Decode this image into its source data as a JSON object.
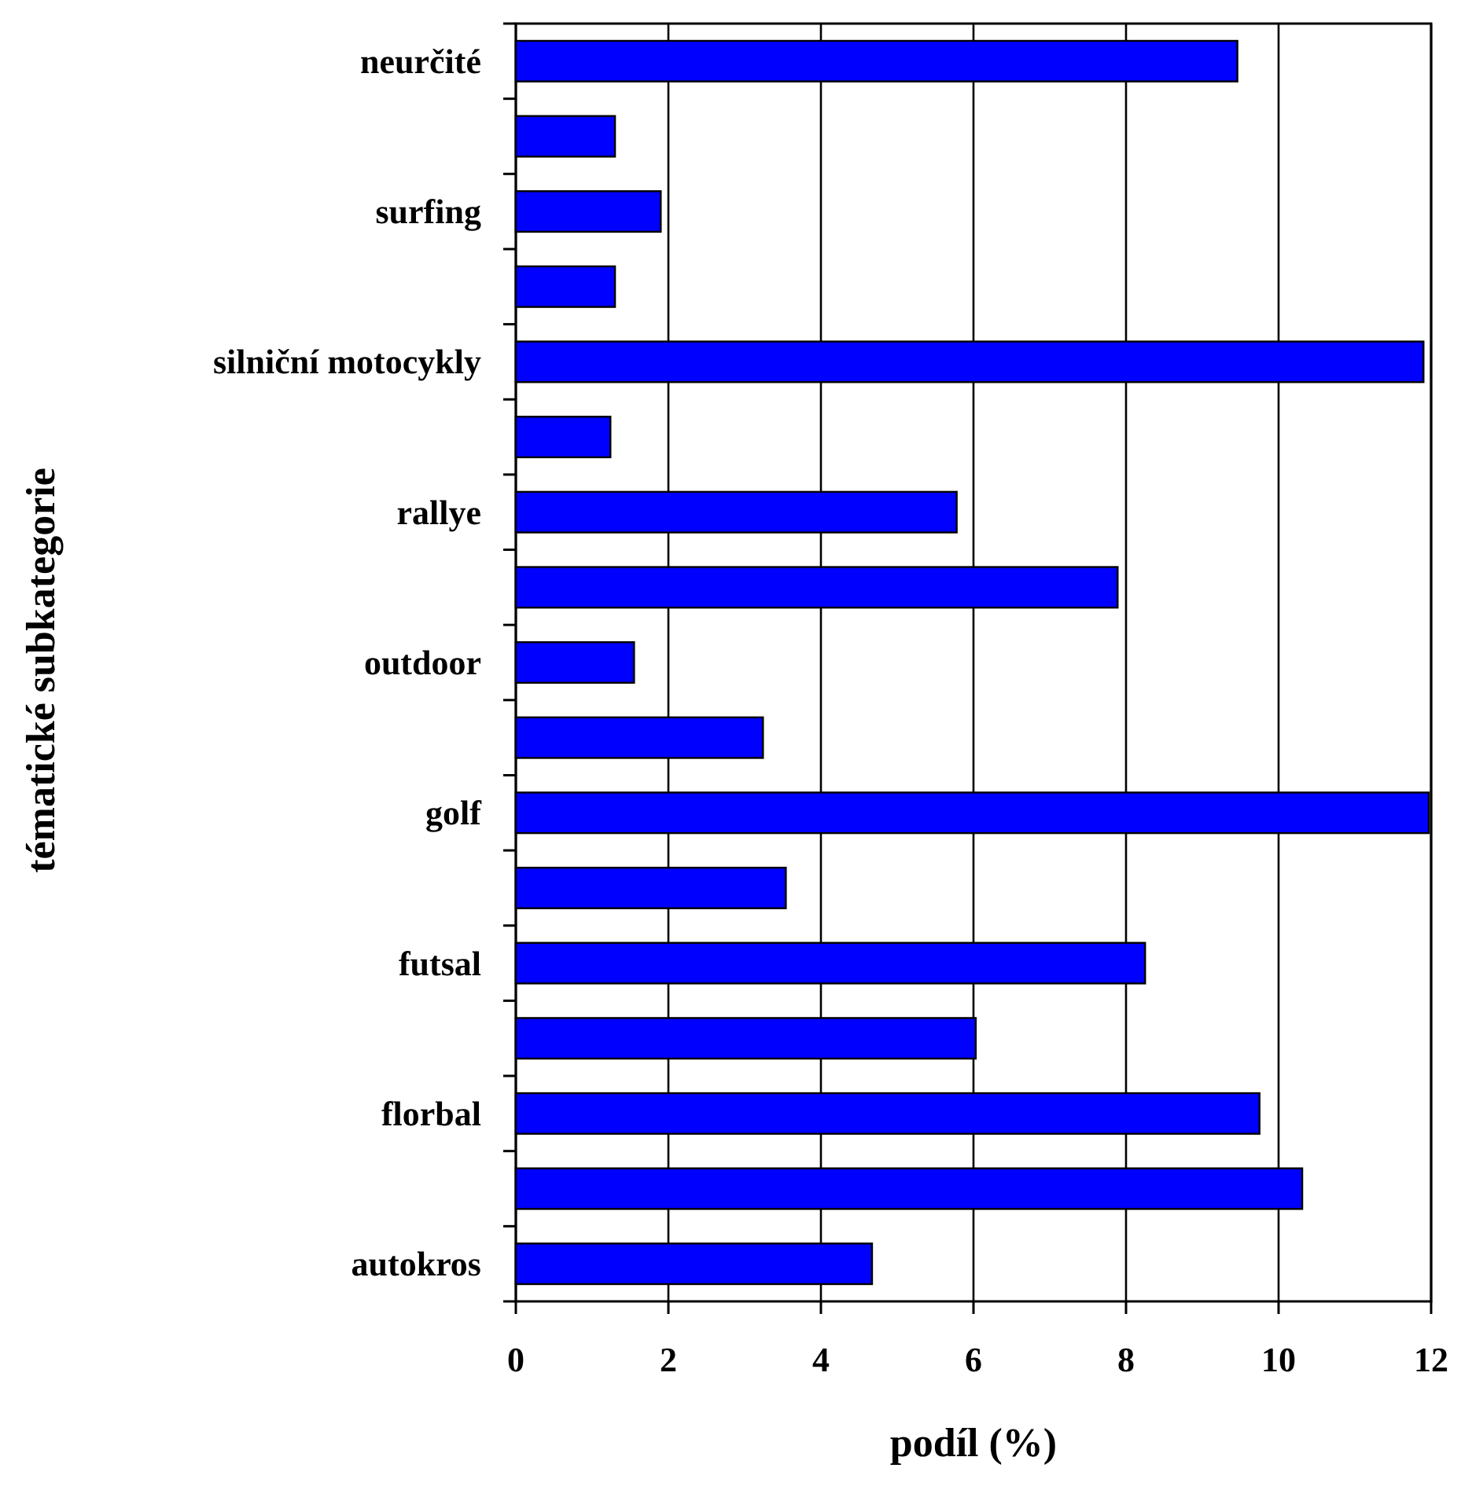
{
  "chart_data": {
    "type": "bar",
    "orientation": "horizontal",
    "xlabel": "podíl (%)",
    "ylabel": "tématické subkategorie",
    "categories": [
      "neurčité",
      null,
      "surfing",
      null,
      "silniční motocykly",
      null,
      "rallye",
      null,
      "outdoor",
      null,
      "golf",
      null,
      "futsal",
      null,
      "florbal",
      null,
      "autokros"
    ],
    "values": [
      9.46,
      1.3,
      1.9,
      1.3,
      11.9,
      1.24,
      5.78,
      7.89,
      1.55,
      3.24,
      11.97,
      3.54,
      8.25,
      6.03,
      9.75,
      10.31,
      4.67
    ],
    "color": "#0000ff",
    "xlim": [
      0,
      12
    ],
    "xticks": [
      0,
      2,
      4,
      6,
      8,
      10,
      12
    ],
    "grid": "x"
  }
}
